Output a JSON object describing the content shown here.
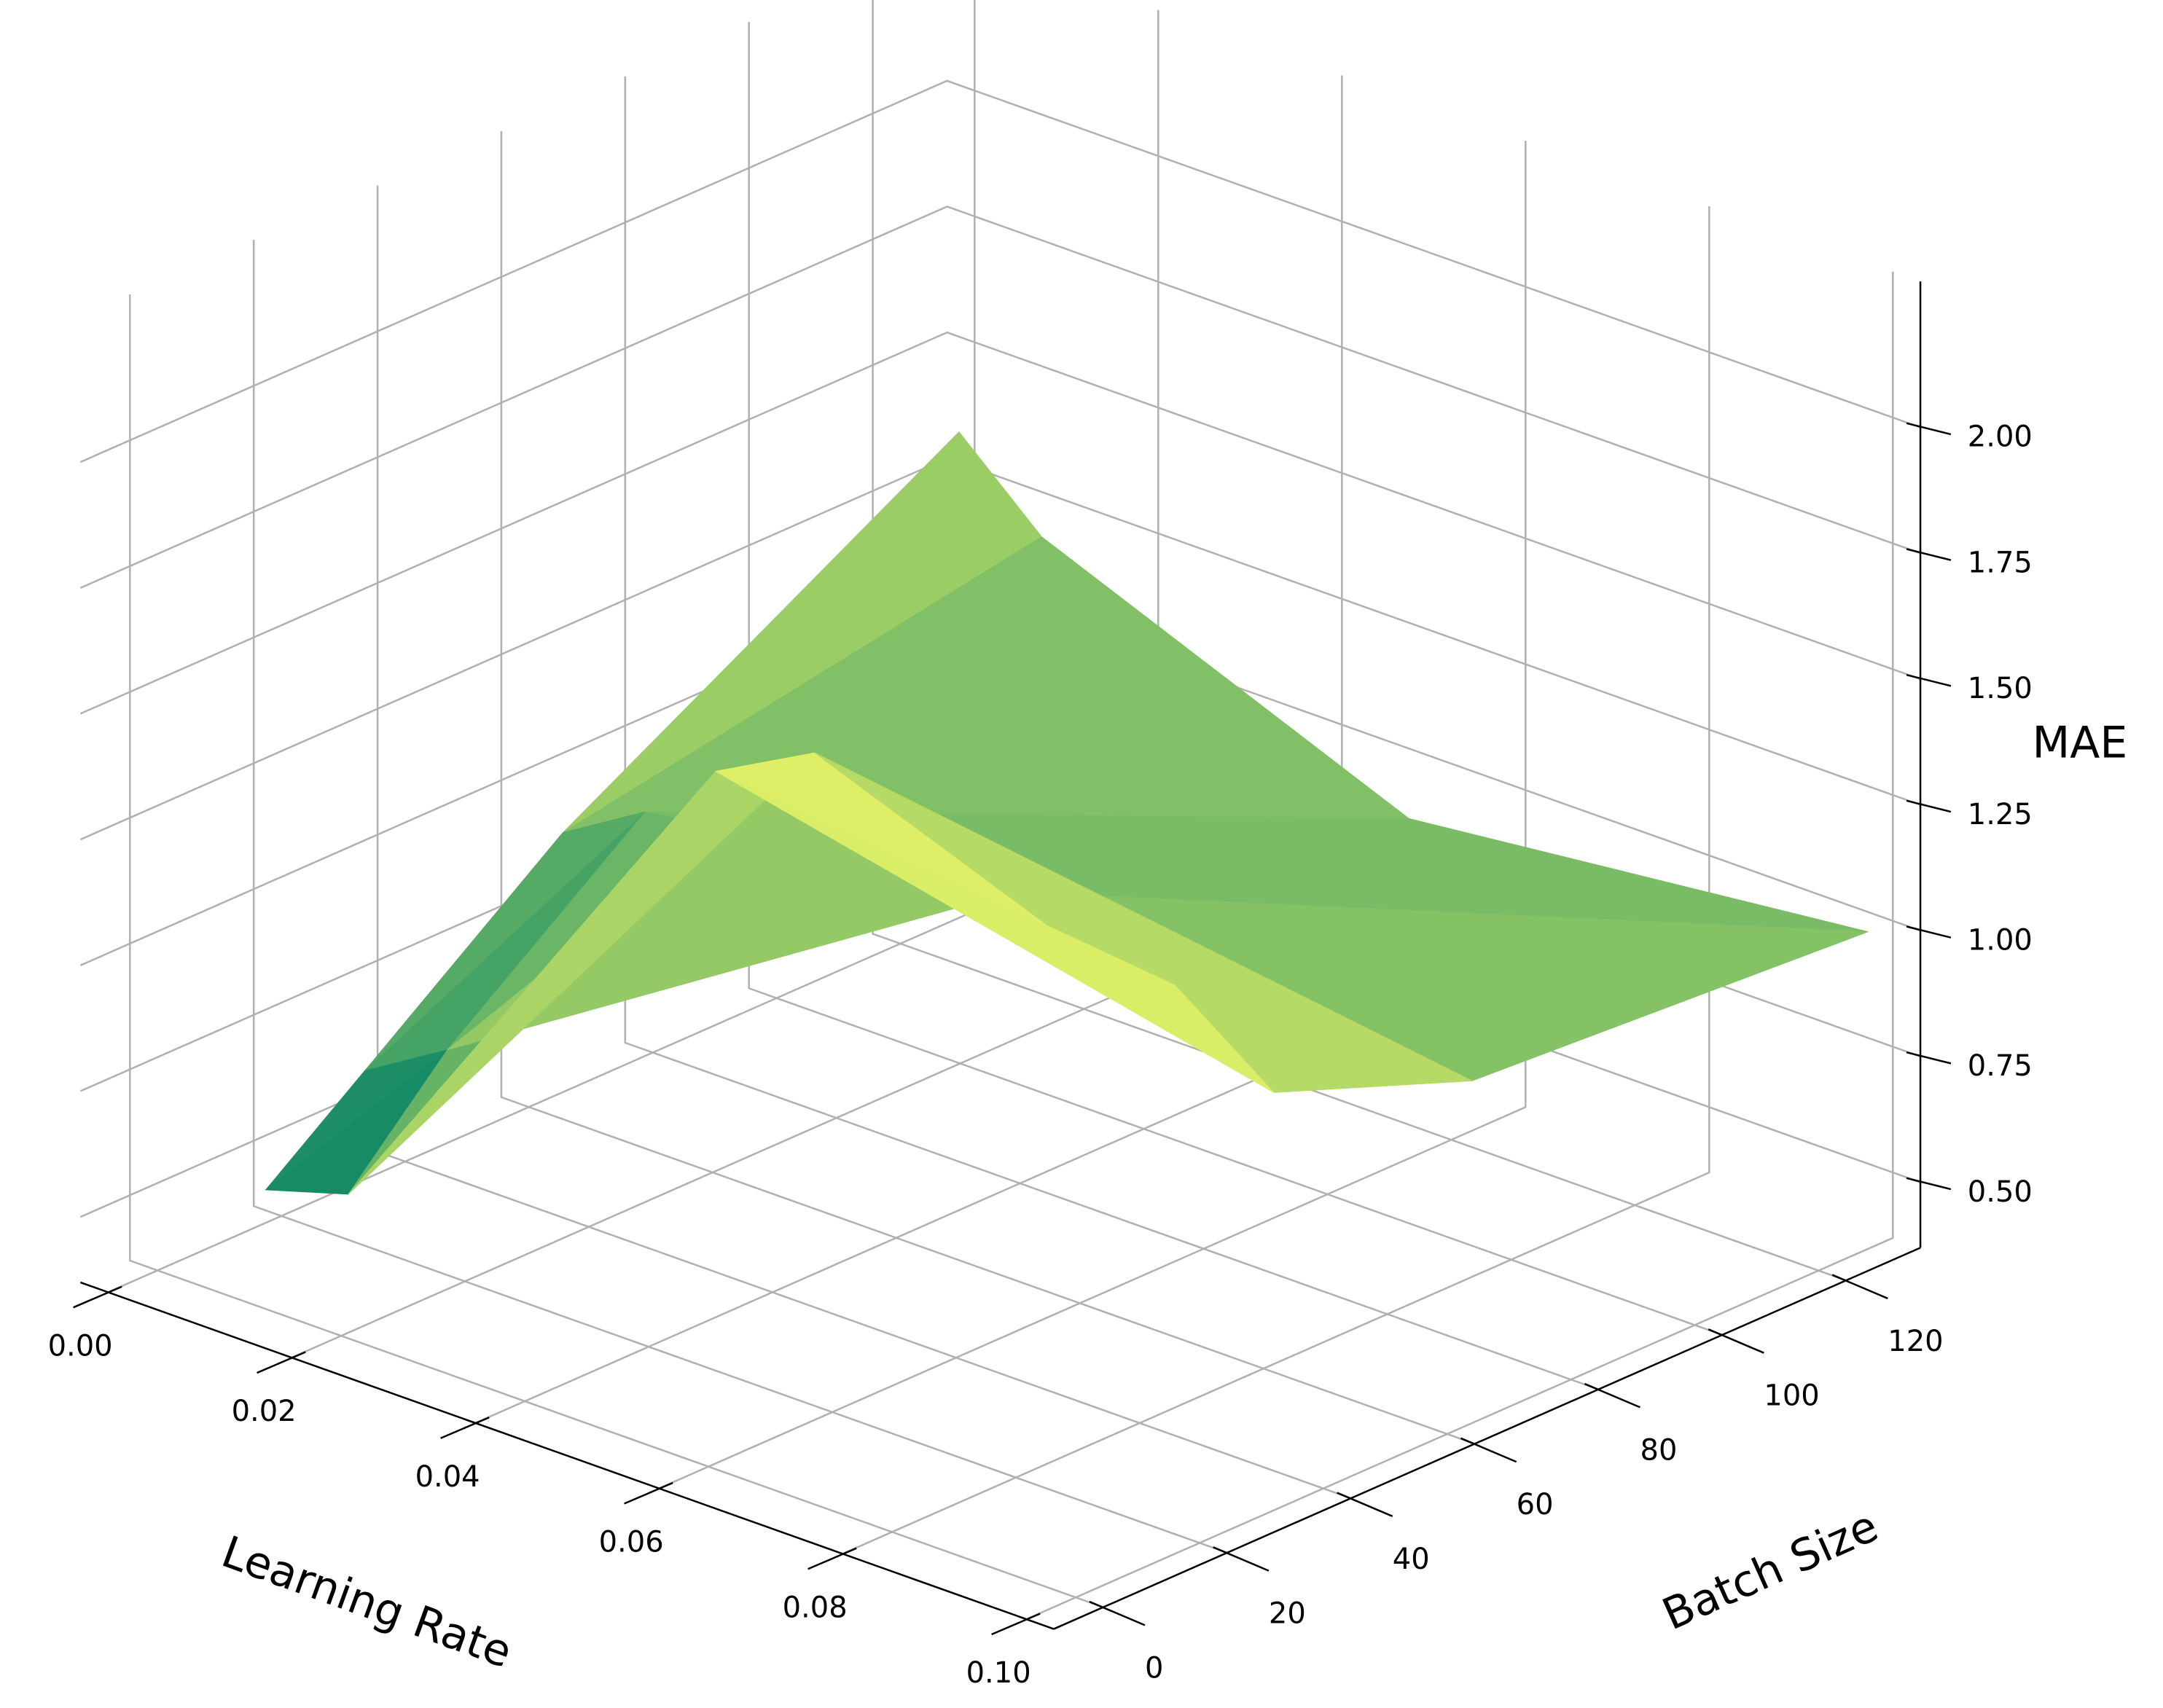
{
  "chart_data": {
    "type": "surface3d",
    "x_label": "Learning Rate",
    "y_label": "Batch Size",
    "z_label": "MAE",
    "x": [
      0.001,
      0.01,
      0.05,
      0.1
    ],
    "y": [
      16,
      32,
      64,
      128
    ],
    "z": [
      [
        0.45,
        0.6,
        0.9,
        1.35
      ],
      [
        0.5,
        0.7,
        1.0,
        1.2
      ],
      [
        1.6,
        1.55,
        1.1,
        0.9
      ],
      [
        1.5,
        1.2,
        1.05,
        1.0
      ]
    ],
    "colormap": "summer",
    "xlim": [
      -0.003,
      0.103
    ],
    "ylim": [
      -8,
      132
    ],
    "zlim": [
      0.37,
      2.29
    ],
    "xticks": [
      {
        "value": 0,
        "label": "0.00"
      },
      {
        "value": 0.02,
        "label": "0.02"
      },
      {
        "value": 0.04,
        "label": "0.04"
      },
      {
        "value": 0.06,
        "label": "0.06"
      },
      {
        "value": 0.08,
        "label": "0.08"
      },
      {
        "value": 0.1,
        "label": "0.10"
      }
    ],
    "yticks": [
      0,
      20,
      40,
      60,
      80,
      100,
      120
    ],
    "zticks": [
      {
        "value": 0.5,
        "label": "0.50"
      },
      {
        "value": 0.75,
        "label": "0.75"
      },
      {
        "value": 1,
        "label": "1.00"
      },
      {
        "value": 1.25,
        "label": "1.25"
      },
      {
        "value": 1.5,
        "label": "1.50"
      },
      {
        "value": 1.75,
        "label": "1.75"
      },
      {
        "value": 2,
        "label": "2.00"
      }
    ],
    "grid": true
  }
}
